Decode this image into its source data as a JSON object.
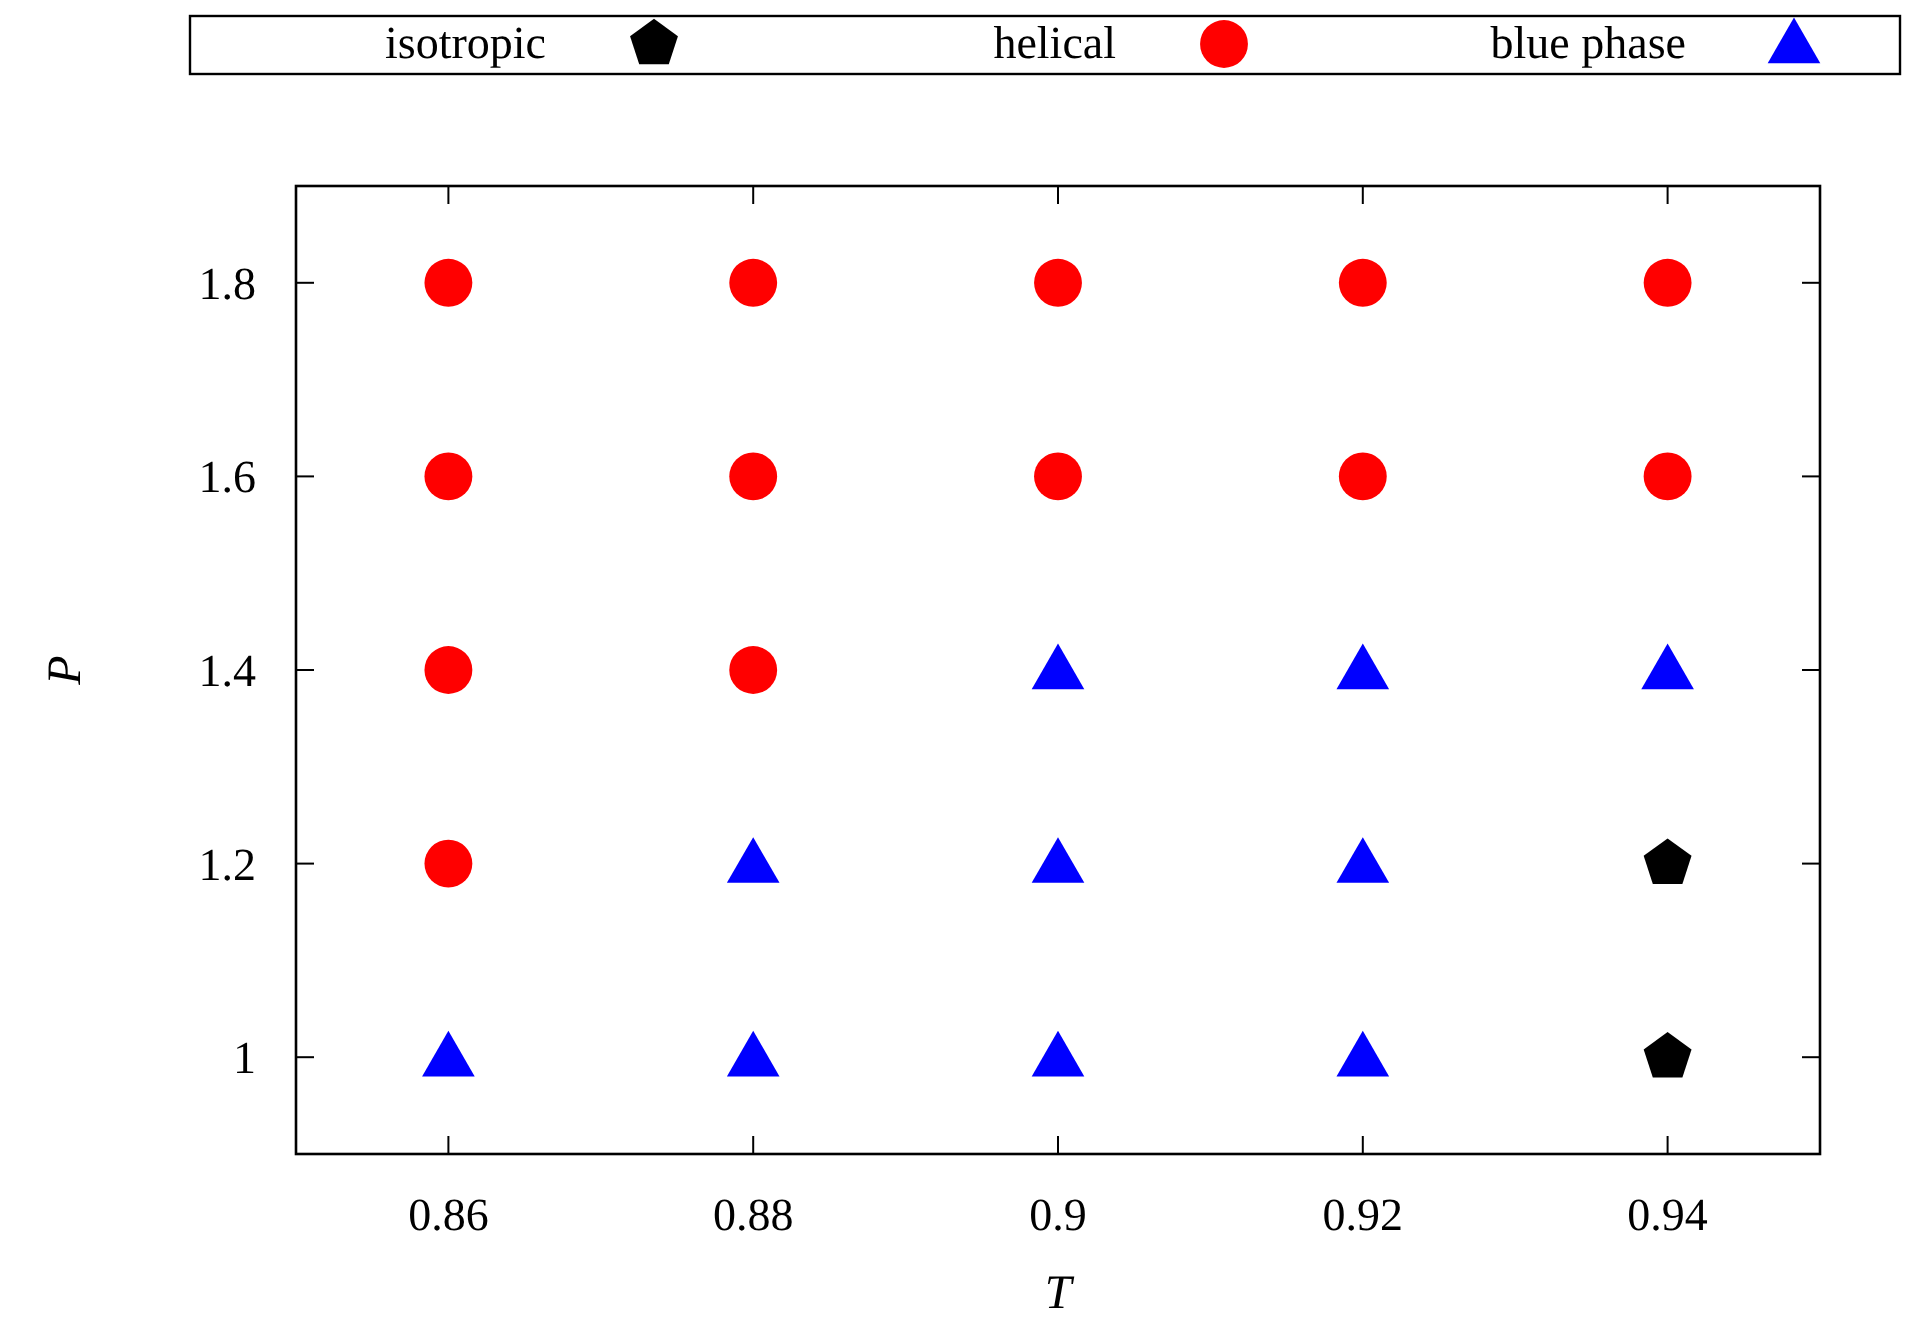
{
  "chart_data": {
    "type": "scatter",
    "xlabel": "T",
    "ylabel": "P",
    "xlim": [
      0.85,
      0.95
    ],
    "xticks": [
      0.86,
      0.88,
      0.9,
      0.92,
      0.94
    ],
    "ylim": [
      0.9,
      1.9
    ],
    "yticks": [
      1,
      1.2,
      1.4,
      1.6,
      1.8
    ],
    "grid": false,
    "legend": "top",
    "series": [
      {
        "name": "isotropic",
        "color": "#000000",
        "x": [
          0.94,
          0.94
        ],
        "values": [
          1.2,
          1.0
        ]
      },
      {
        "name": "helical",
        "color": "#ff0000",
        "marker": "circle",
        "x": [
          0.86,
          0.86,
          0.86,
          0.86,
          0.88,
          0.88,
          0.88,
          0.9,
          0.9,
          0.92,
          0.92,
          0.94,
          0.94
        ],
        "values": [
          1.2,
          1.4,
          1.6,
          1.8,
          1.4,
          1.6,
          1.8,
          1.6,
          1.8,
          1.6,
          1.8,
          1.6,
          1.8
        ]
      },
      {
        "name": "blue phase",
        "color": "#0000ff",
        "marker": "triangle",
        "x": [
          0.86,
          0.88,
          0.88,
          0.9,
          0.9,
          0.9,
          0.92,
          0.92,
          0.92,
          0.94
        ],
        "values": [
          1.0,
          1.0,
          1.2,
          1.0,
          1.2,
          1.4,
          1.0,
          1.2,
          1.4,
          1.4
        ]
      }
    ]
  }
}
